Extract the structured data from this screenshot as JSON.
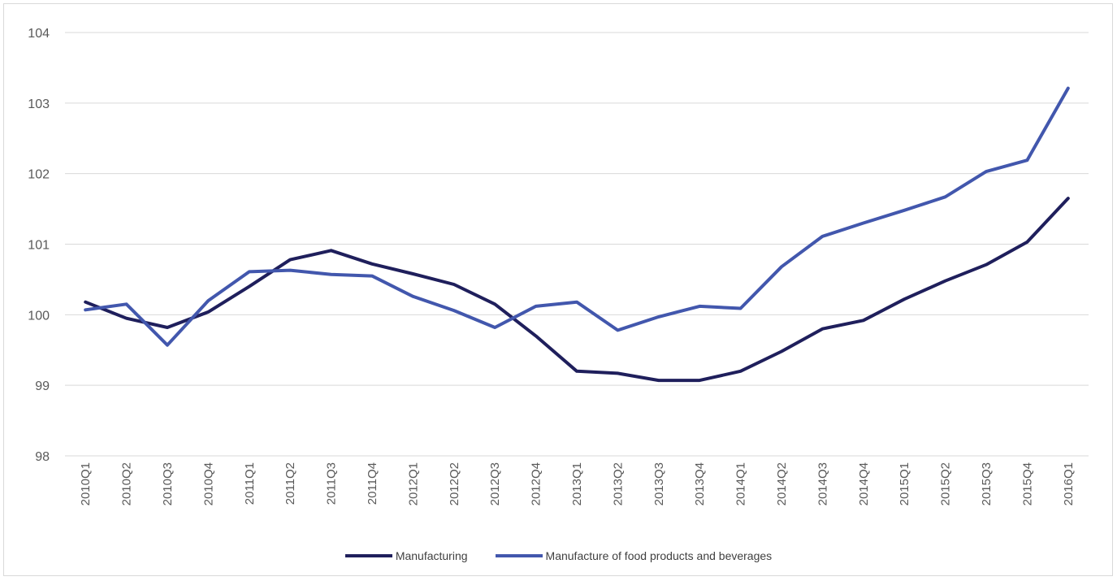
{
  "chart_data": {
    "type": "line",
    "title": "",
    "xlabel": "",
    "ylabel": "",
    "ylim": [
      98,
      104
    ],
    "yticks": [
      "98",
      "99",
      "100",
      "101",
      "102",
      "103",
      "104"
    ],
    "grid": true,
    "legend_position": "bottom",
    "categories": [
      "2010Q1",
      "2010Q2",
      "2010Q3",
      "2010Q4",
      "2011Q1",
      "2011Q2",
      "2011Q3",
      "2011Q4",
      "2012Q1",
      "2012Q2",
      "2012Q3",
      "2012Q4",
      "2013Q1",
      "2013Q2",
      "2013Q3",
      "2013Q4",
      "2014Q1",
      "2014Q2",
      "2014Q3",
      "2014Q4",
      "2015Q1",
      "2015Q2",
      "2015Q3",
      "2015Q4",
      "2016Q1"
    ],
    "series": [
      {
        "name": "Manufacturing",
        "color": "#1f1f5c",
        "values": [
          100.18,
          99.95,
          99.82,
          100.04,
          100.4,
          100.78,
          100.91,
          100.72,
          100.58,
          100.43,
          100.15,
          99.7,
          99.2,
          99.17,
          99.07,
          99.07,
          99.2,
          99.48,
          99.8,
          99.92,
          100.22,
          100.48,
          100.71,
          101.03,
          101.65
        ]
      },
      {
        "name": "Manufacture of food products and beverages",
        "color": "#4257ad",
        "values": [
          100.07,
          100.15,
          99.57,
          100.2,
          100.61,
          100.63,
          100.57,
          100.55,
          100.26,
          100.06,
          99.82,
          100.12,
          100.18,
          99.78,
          99.97,
          100.12,
          100.09,
          100.68,
          101.11,
          101.3,
          101.48,
          101.67,
          102.03,
          102.19,
          103.21
        ]
      }
    ]
  }
}
